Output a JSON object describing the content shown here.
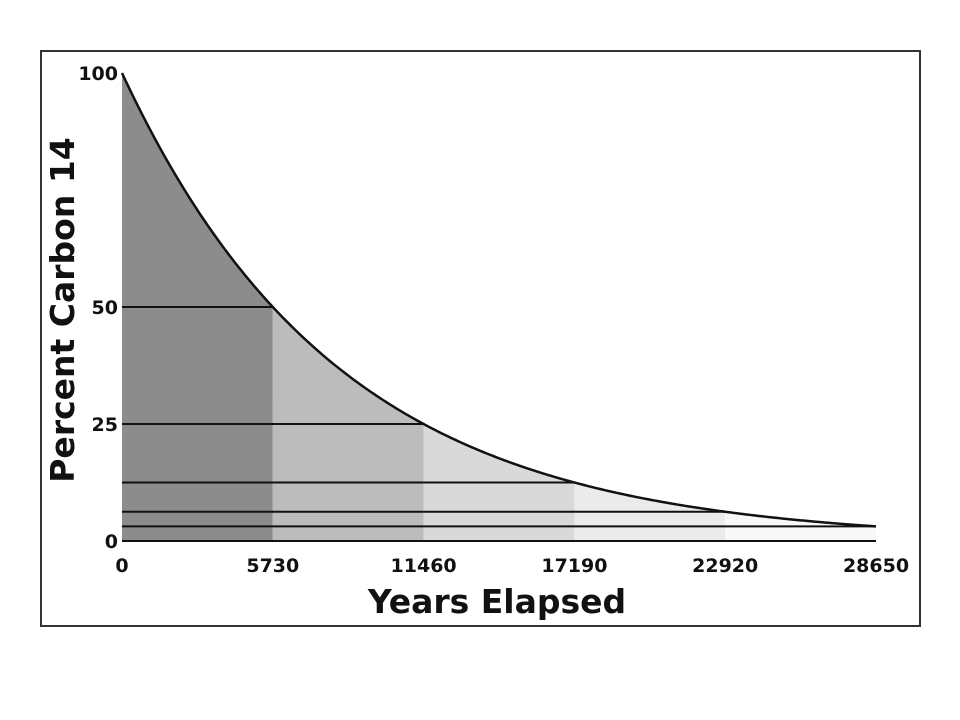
{
  "chart_data": {
    "type": "area",
    "xlabel": "Years Elapsed",
    "ylabel": "Percent Carbon 14",
    "xlim": [
      0,
      28650
    ],
    "ylim": [
      0,
      100
    ],
    "x_ticks": [
      "0",
      "5730",
      "11460",
      "17190",
      "22920",
      "28650"
    ],
    "y_ticks": [
      "0",
      "25",
      "50",
      "100"
    ],
    "half_life_years": 5730,
    "series": [
      {
        "x": [
          0,
          5730,
          11460,
          17190,
          22920,
          28650
        ],
        "values": [
          100,
          50,
          25,
          12.5,
          6.25,
          3.125
        ]
      }
    ],
    "bands": [
      {
        "from": 0,
        "to": 5730,
        "color": "#8c8c8c"
      },
      {
        "from": 5730,
        "to": 11460,
        "color": "#bcbcbc"
      },
      {
        "from": 11460,
        "to": 17190,
        "color": "#d9d9d9"
      },
      {
        "from": 17190,
        "to": 22920,
        "color": "#ebebeb"
      },
      {
        "from": 22920,
        "to": 28650,
        "color": "#f8f8f8"
      }
    ],
    "grid": false
  }
}
